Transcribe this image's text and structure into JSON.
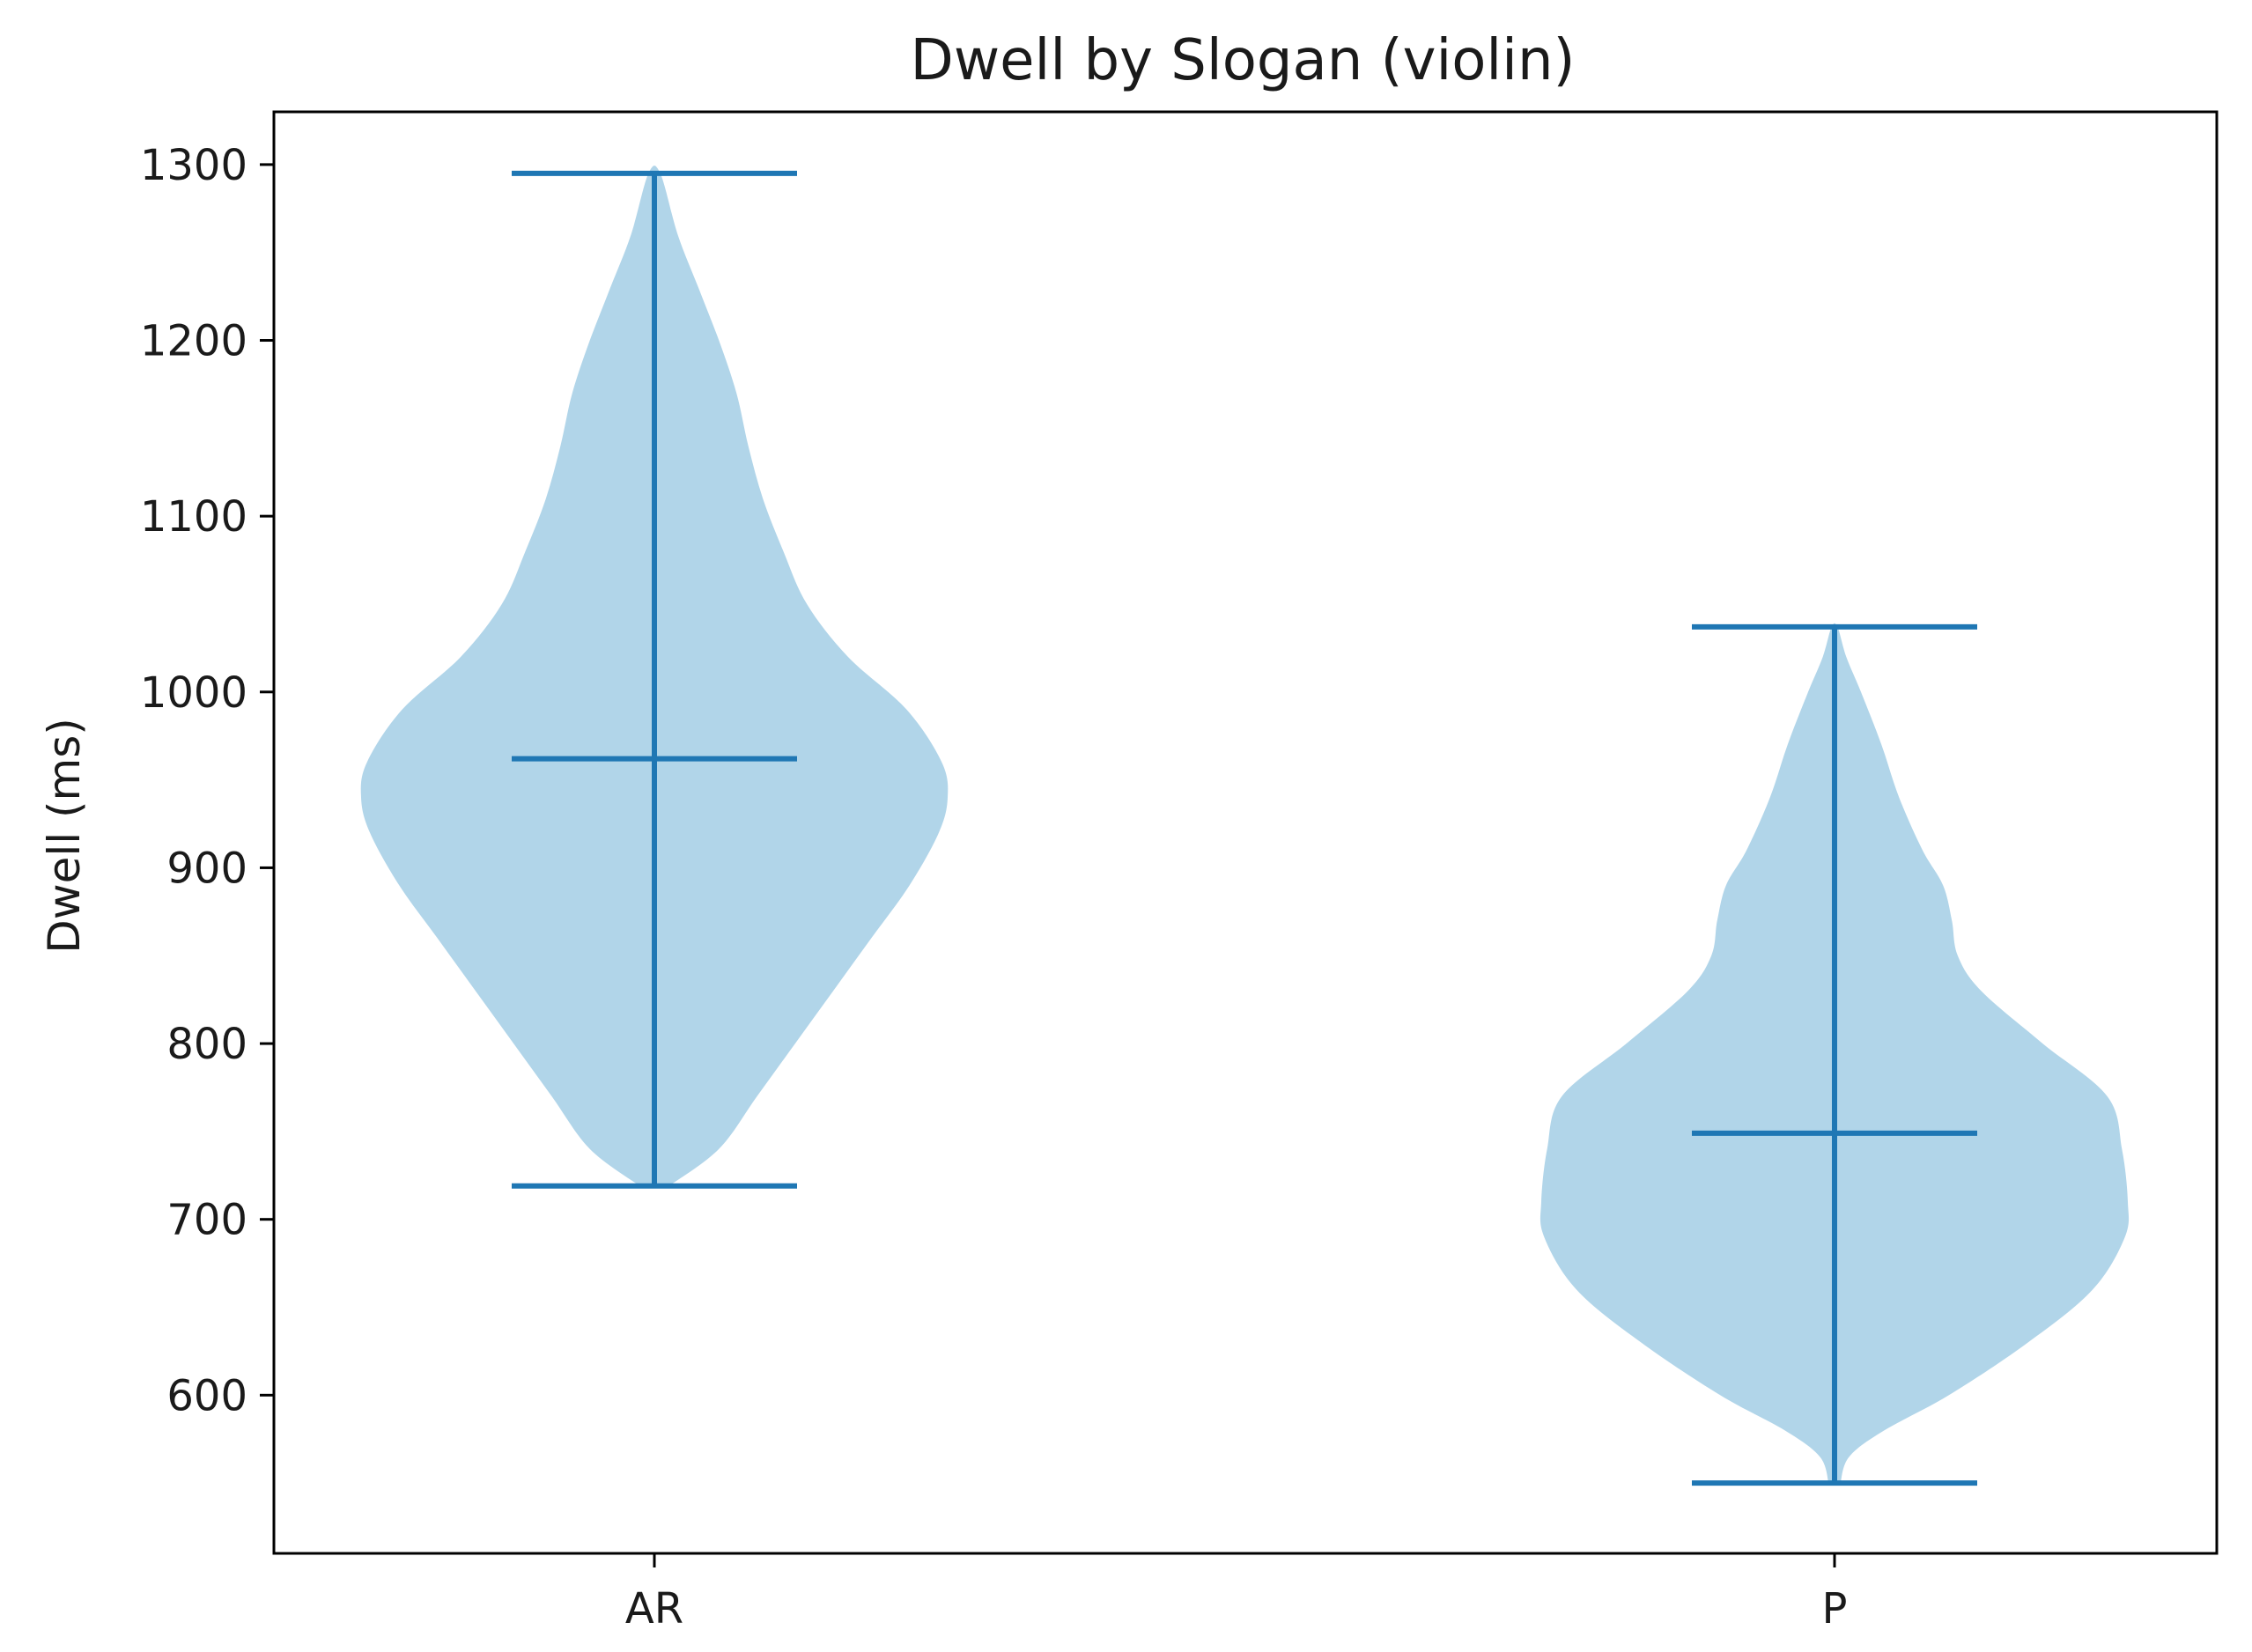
{
  "chart_data": {
    "type": "violin",
    "title": "Dwell by Slogan (violin)",
    "xlabel": "",
    "ylabel": "Dwell (ms)",
    "categories": [
      "AR",
      "P"
    ],
    "ylim": [
      510,
      1330
    ],
    "yticks": [
      600,
      700,
      800,
      900,
      1000,
      1100,
      1200,
      1300
    ],
    "series": [
      {
        "category": "AR",
        "min": 719,
        "max": 1295,
        "median": 962,
        "density": [
          [
            719,
            0.05
          ],
          [
            740,
            0.22
          ],
          [
            770,
            0.35
          ],
          [
            800,
            0.48
          ],
          [
            830,
            0.61
          ],
          [
            860,
            0.74
          ],
          [
            890,
            0.87
          ],
          [
            920,
            0.97
          ],
          [
            940,
            1.0
          ],
          [
            960,
            0.98
          ],
          [
            990,
            0.86
          ],
          [
            1020,
            0.66
          ],
          [
            1050,
            0.52
          ],
          [
            1080,
            0.44
          ],
          [
            1110,
            0.37
          ],
          [
            1140,
            0.32
          ],
          [
            1170,
            0.28
          ],
          [
            1200,
            0.22
          ],
          [
            1230,
            0.15
          ],
          [
            1260,
            0.08
          ],
          [
            1295,
            0.02
          ]
        ]
      },
      {
        "category": "P",
        "min": 550,
        "max": 1037,
        "median": 749,
        "density": [
          [
            550,
            0.02
          ],
          [
            565,
            0.05
          ],
          [
            580,
            0.17
          ],
          [
            600,
            0.39
          ],
          [
            630,
            0.66
          ],
          [
            660,
            0.88
          ],
          [
            690,
            0.99
          ],
          [
            710,
            1.0
          ],
          [
            740,
            0.98
          ],
          [
            770,
            0.93
          ],
          [
            800,
            0.71
          ],
          [
            830,
            0.5
          ],
          [
            850,
            0.42
          ],
          [
            870,
            0.4
          ],
          [
            890,
            0.37
          ],
          [
            910,
            0.3
          ],
          [
            940,
            0.22
          ],
          [
            970,
            0.16
          ],
          [
            1000,
            0.09
          ],
          [
            1020,
            0.04
          ],
          [
            1037,
            0.01
          ]
        ]
      }
    ],
    "colors": {
      "violin_fill": "#b1d5e9",
      "lines": "#1f77b4",
      "axes": "#000000",
      "text": "#1a1a1a"
    }
  }
}
